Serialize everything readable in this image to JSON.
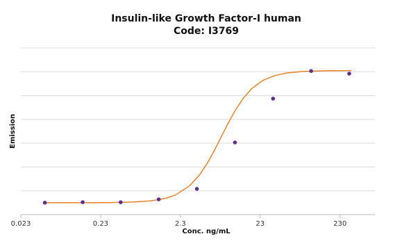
{
  "chart_data": {
    "type": "scatter",
    "title": [
      "Insulin-like Growth Factor-I human",
      "Code: I3769"
    ],
    "x_label": "Conc. ng/mL",
    "y_label": "Emission",
    "xscale": "log",
    "xlim": [
      0.023,
      630
    ],
    "xticks": [
      0.023,
      0.23,
      2.3,
      23,
      230
    ],
    "ylim": [
      0,
      7
    ],
    "yticks": [
      0,
      1,
      2,
      3,
      4,
      5,
      6,
      7
    ],
    "ytick_labels": false,
    "grid": true,
    "series": [
      {
        "type": "scatter",
        "color": "#5e2f8c",
        "x": [
          0.046,
          0.137,
          0.41,
          1.23,
          3.7,
          11.1,
          33.3,
          100,
          300
        ],
        "values": [
          0.5,
          0.52,
          0.52,
          0.64,
          1.08,
          3.03,
          4.87,
          6.03,
          5.92
        ]
      },
      {
        "type": "line",
        "color": "#e8822a",
        "x": [
          0.046,
          0.1,
          0.3,
          0.6,
          1,
          1.5,
          2,
          3,
          4,
          5,
          6,
          7.5,
          9,
          11,
          14,
          18,
          25,
          35,
          50,
          80,
          150,
          320
        ],
        "values": [
          0.5,
          0.5,
          0.506,
          0.527,
          0.579,
          0.683,
          0.826,
          1.207,
          1.671,
          2.159,
          2.636,
          3.275,
          3.8,
          4.33,
          4.87,
          5.29,
          5.64,
          5.84,
          5.95,
          6.01,
          6.04,
          6.05
        ]
      }
    ]
  }
}
